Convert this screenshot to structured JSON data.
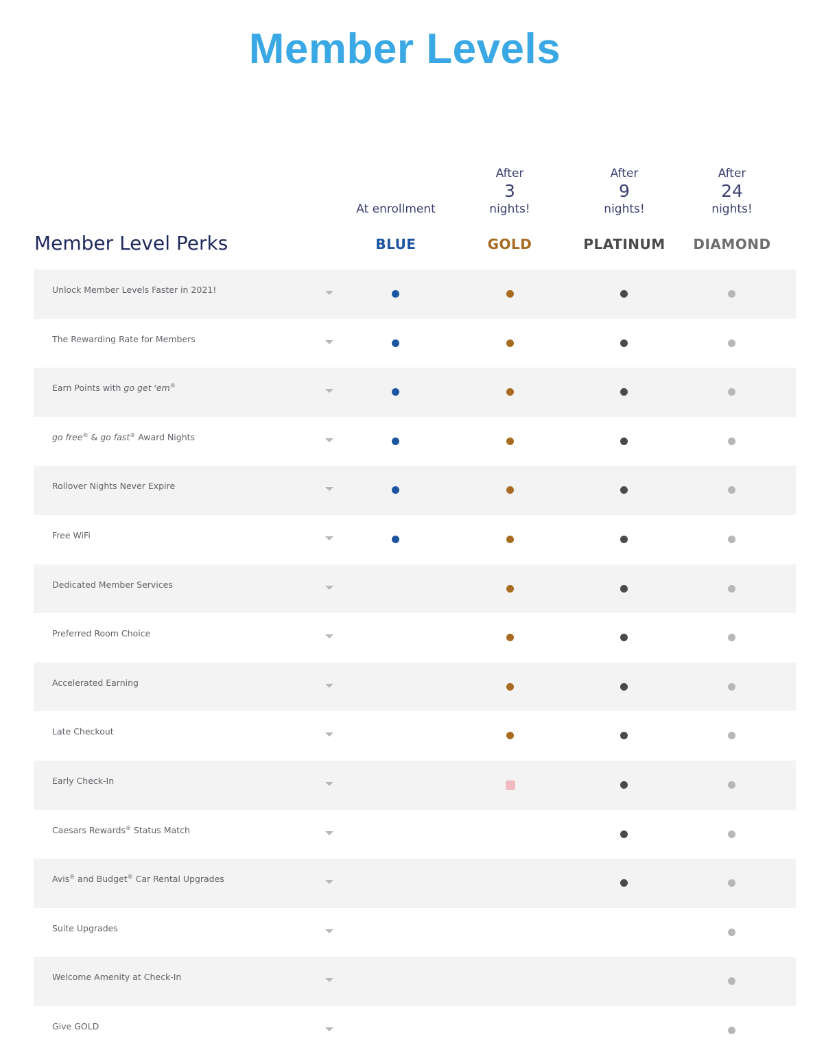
{
  "page": {
    "title": "Member Levels"
  },
  "table": {
    "perks_heading": "Member Level Perks",
    "tiers": [
      {
        "key": "blue",
        "qualifier": "At enrollment",
        "after": "",
        "number": "",
        "nights": "",
        "name": "BLUE",
        "color": "#1c56a2",
        "dot_color": "#1c56a2"
      },
      {
        "key": "gold",
        "qualifier": "",
        "after": "After",
        "number": "3",
        "nights": "nights!",
        "name": "GOLD",
        "color": "#a86b22",
        "dot_color": "#a86b22"
      },
      {
        "key": "platinum",
        "qualifier": "",
        "after": "After",
        "number": "9",
        "nights": "nights!",
        "name": "PLATINUM",
        "color": "#4a4a4c",
        "dot_color": "#4a4a4c"
      },
      {
        "key": "diamond",
        "qualifier": "",
        "after": "After",
        "number": "24",
        "nights": "nights!",
        "name": "DIAMOND",
        "color": "#6e6e70",
        "dot_color": "#b7b7b9"
      }
    ],
    "rows": [
      {
        "label": "Unlock Member Levels Faster in 2021!",
        "blue": true,
        "gold": true,
        "platinum": true,
        "diamond": true
      },
      {
        "label": "The Rewarding Rate for Members",
        "blue": true,
        "gold": true,
        "platinum": true,
        "diamond": true
      },
      {
        "label": "Earn Points with go get 'em®",
        "blue": true,
        "gold": true,
        "platinum": true,
        "diamond": true
      },
      {
        "label": "go free® & go fast® Award Nights",
        "blue": true,
        "gold": true,
        "platinum": true,
        "diamond": true
      },
      {
        "label": "Rollover Nights Never Expire",
        "blue": true,
        "gold": true,
        "platinum": true,
        "diamond": true
      },
      {
        "label": "Free WiFi",
        "blue": true,
        "gold": true,
        "platinum": true,
        "diamond": true
      },
      {
        "label": "Dedicated Member Services",
        "blue": false,
        "gold": true,
        "platinum": true,
        "diamond": true
      },
      {
        "label": "Preferred Room Choice",
        "blue": false,
        "gold": true,
        "platinum": true,
        "diamond": true
      },
      {
        "label": "Accelerated Earning",
        "blue": false,
        "gold": true,
        "platinum": true,
        "diamond": true
      },
      {
        "label": "Late Checkout",
        "blue": false,
        "gold": true,
        "platinum": true,
        "diamond": true
      },
      {
        "label": "Early Check-In",
        "blue": false,
        "gold": "partial",
        "platinum": true,
        "diamond": true
      },
      {
        "label": "Caesars Rewards® Status Match",
        "blue": false,
        "gold": false,
        "platinum": true,
        "diamond": true
      },
      {
        "label": "Avis® and Budget® Car Rental Upgrades",
        "blue": false,
        "gold": false,
        "platinum": true,
        "diamond": true
      },
      {
        "label": "Suite Upgrades",
        "blue": false,
        "gold": false,
        "platinum": false,
        "diamond": true
      },
      {
        "label": "Welcome Amenity at Check-In",
        "blue": false,
        "gold": false,
        "platinum": false,
        "diamond": true
      },
      {
        "label": "Give GOLD",
        "blue": false,
        "gold": false,
        "platinum": false,
        "diamond": true
      }
    ]
  }
}
